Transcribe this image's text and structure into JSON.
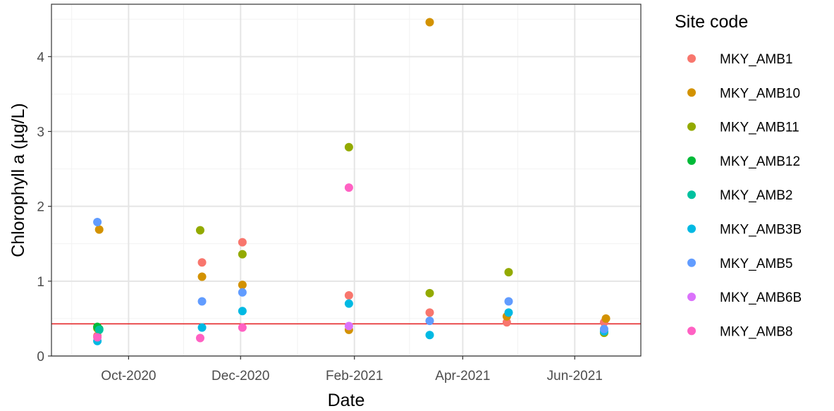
{
  "chart_data": {
    "type": "scatter",
    "xlabel": "Date",
    "ylabel": "Chlorophyll a (µg/L)",
    "x_axis_type": "date",
    "xlim": [
      "2020-08-20",
      "2021-07-07"
    ],
    "ylim": [
      0,
      4.7
    ],
    "x_ticks": [
      {
        "date": "2020-10-01",
        "label": "Oct-2020"
      },
      {
        "date": "2020-12-01",
        "label": "Dec-2020"
      },
      {
        "date": "2021-02-01",
        "label": "Feb-2021"
      },
      {
        "date": "2021-04-01",
        "label": "Apr-2021"
      },
      {
        "date": "2021-06-01",
        "label": "Jun-2021"
      }
    ],
    "x_minor_ticks": [
      "2020-08-31",
      "2020-10-31",
      "2021-01-01",
      "2021-03-03",
      "2021-05-01"
    ],
    "y_ticks": [
      0,
      1,
      2,
      3,
      4
    ],
    "y_minor_ticks": [
      0.5,
      1.5,
      2.5,
      3.5,
      4.5
    ],
    "grid": true,
    "reference_line": {
      "y": 0.43,
      "color": "#e31a1c"
    },
    "legend": {
      "title": "Site code",
      "position": "right"
    },
    "series": [
      {
        "name": "MKY_AMB1",
        "color": "#F8766D",
        "points": [
          {
            "x": "2020-09-14",
            "y": 0.27
          },
          {
            "x": "2020-11-10",
            "y": 1.25
          },
          {
            "x": "2020-12-02",
            "y": 1.52
          },
          {
            "x": "2021-01-29",
            "y": 0.81
          },
          {
            "x": "2021-03-14",
            "y": 0.58
          },
          {
            "x": "2021-04-25",
            "y": 0.45
          },
          {
            "x": "2021-06-17",
            "y": 0.45
          }
        ]
      },
      {
        "name": "MKY_AMB10",
        "color": "#D39200",
        "points": [
          {
            "x": "2020-09-15",
            "y": 1.69
          },
          {
            "x": "2020-11-10",
            "y": 1.06
          },
          {
            "x": "2020-12-02",
            "y": 0.95
          },
          {
            "x": "2021-01-29",
            "y": 0.35
          },
          {
            "x": "2021-03-14",
            "y": 4.46
          },
          {
            "x": "2021-04-25",
            "y": 0.53
          },
          {
            "x": "2021-06-18",
            "y": 0.5
          }
        ]
      },
      {
        "name": "MKY_AMB11",
        "color": "#93AA00",
        "points": [
          {
            "x": "2020-09-14",
            "y": 0.37
          },
          {
            "x": "2020-11-09",
            "y": 1.68
          },
          {
            "x": "2020-12-02",
            "y": 1.36
          },
          {
            "x": "2021-01-29",
            "y": 2.79
          },
          {
            "x": "2021-03-14",
            "y": 0.84
          },
          {
            "x": "2021-04-26",
            "y": 1.12
          },
          {
            "x": "2021-06-17",
            "y": 0.31
          }
        ]
      },
      {
        "name": "MKY_AMB12",
        "color": "#00BA38",
        "points": [
          {
            "x": "2020-09-14",
            "y": 0.39
          },
          {
            "x": "2020-09-15",
            "y": 0.36
          }
        ]
      },
      {
        "name": "MKY_AMB2",
        "color": "#00C19F",
        "points": [
          {
            "x": "2020-09-15",
            "y": 0.35
          }
        ]
      },
      {
        "name": "MKY_AMB3B",
        "color": "#00B9E3",
        "points": [
          {
            "x": "2020-09-14",
            "y": 0.2
          },
          {
            "x": "2020-11-10",
            "y": 0.38
          },
          {
            "x": "2020-12-02",
            "y": 0.6
          },
          {
            "x": "2021-01-29",
            "y": 0.7
          },
          {
            "x": "2021-03-14",
            "y": 0.28
          },
          {
            "x": "2021-04-26",
            "y": 0.58
          },
          {
            "x": "2021-06-17",
            "y": 0.33
          }
        ]
      },
      {
        "name": "MKY_AMB5",
        "color": "#619CFF",
        "points": [
          {
            "x": "2020-09-14",
            "y": 1.79
          },
          {
            "x": "2020-11-10",
            "y": 0.73
          },
          {
            "x": "2020-12-02",
            "y": 0.85
          },
          {
            "x": "2021-03-14",
            "y": 0.47
          },
          {
            "x": "2021-04-26",
            "y": 0.73
          },
          {
            "x": "2021-06-17",
            "y": 0.36
          }
        ]
      },
      {
        "name": "MKY_AMB6B",
        "color": "#DB72FB",
        "points": [
          {
            "x": "2021-01-29",
            "y": 0.4
          }
        ]
      },
      {
        "name": "MKY_AMB8",
        "color": "#FF61C3",
        "points": [
          {
            "x": "2020-09-14",
            "y": 0.25
          },
          {
            "x": "2020-11-09",
            "y": 0.24
          },
          {
            "x": "2020-12-02",
            "y": 0.38
          },
          {
            "x": "2021-01-29",
            "y": 2.25
          }
        ]
      }
    ]
  }
}
